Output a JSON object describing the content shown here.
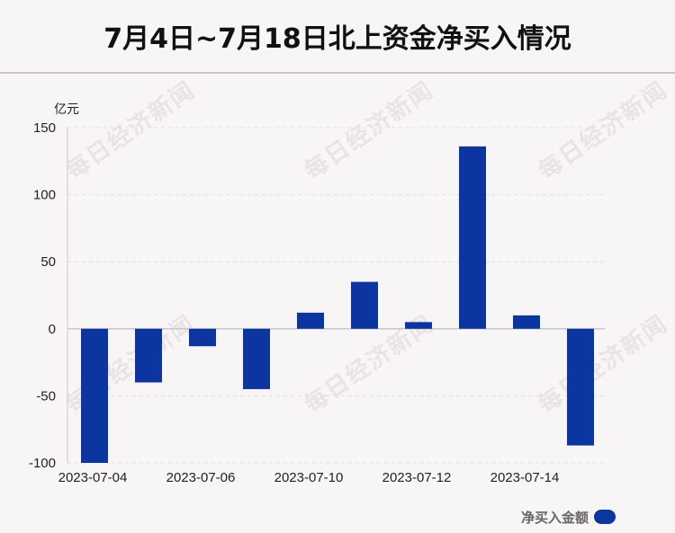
{
  "title": "7月4日~7月18日北上资金净买入情况",
  "watermark_text": "每日经济新闻",
  "chart_data": {
    "type": "bar",
    "title": "7月4日~7月18日北上资金净买入情况",
    "ylabel": "亿元",
    "ylim": [
      -100,
      150
    ],
    "yticks": [
      150,
      100,
      50,
      0,
      -50,
      -100
    ],
    "grid": true,
    "legend_position": "bottom-right",
    "color": "#0d35a0",
    "x_tick_labels": [
      "2023-07-04",
      "2023-07-06",
      "2023-07-10",
      "2023-07-12",
      "2023-07-14"
    ],
    "series": [
      {
        "name": "净买入金额",
        "values": [
          -100,
          -40,
          -13,
          -45,
          12,
          35,
          5,
          136,
          10,
          -87
        ]
      }
    ]
  }
}
